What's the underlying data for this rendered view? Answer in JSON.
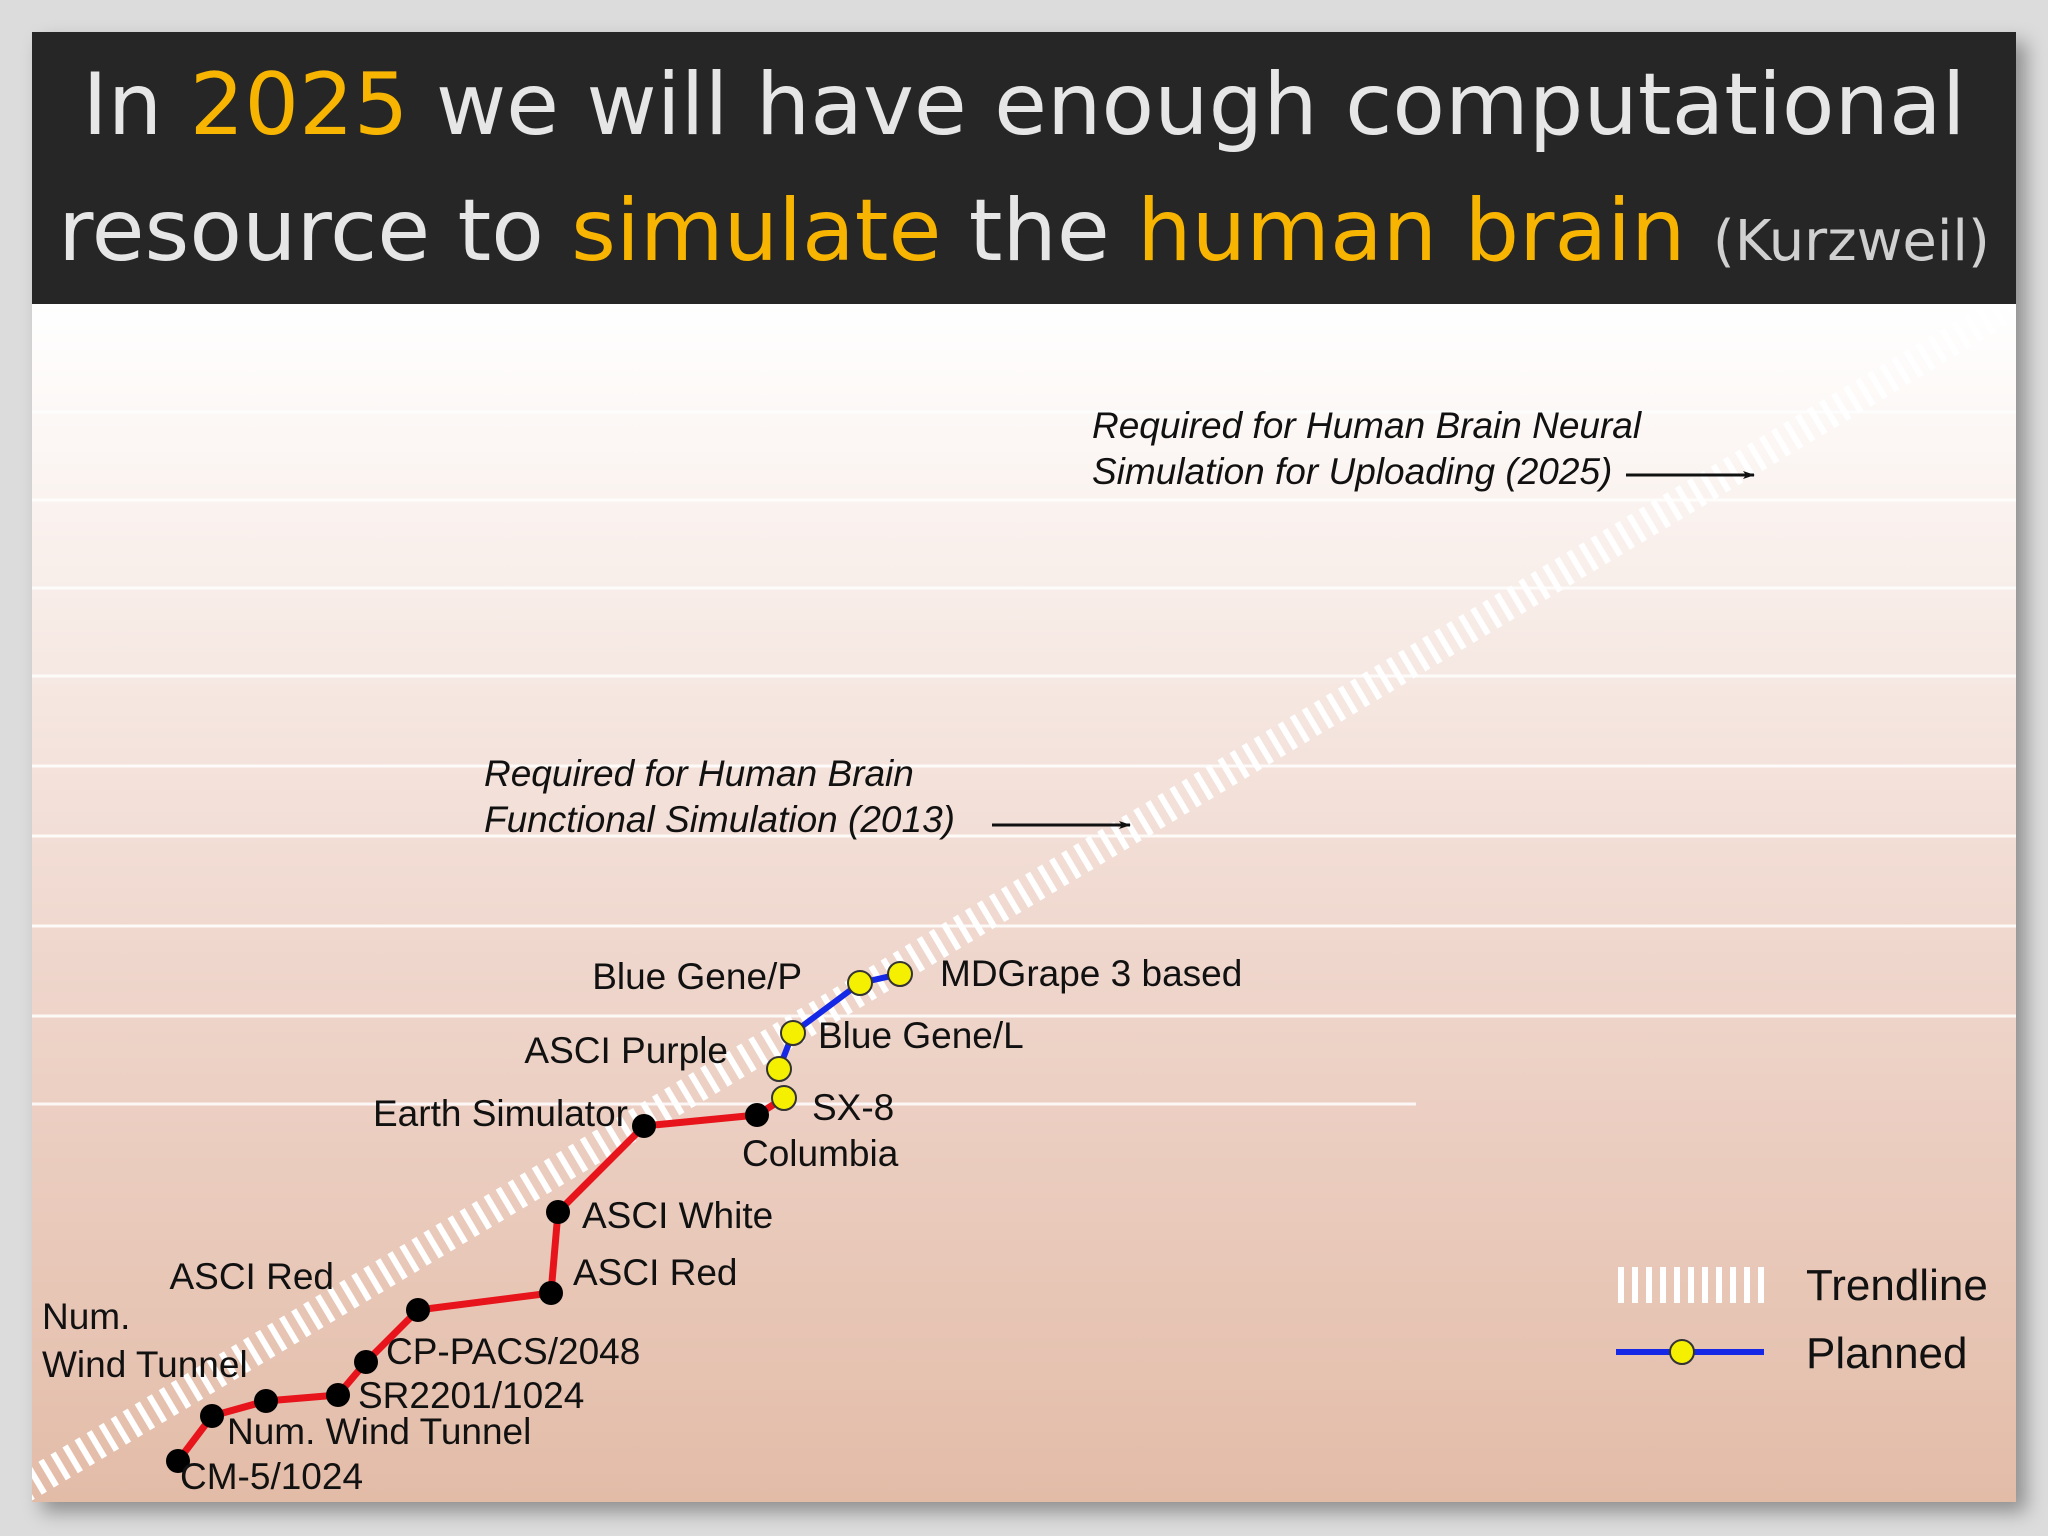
{
  "title": {
    "line1_pre": "In ",
    "line1_year": "2025",
    "line1_post": " we will have enough computational",
    "line2_pre": "resource to ",
    "line2_simulate": "simulate",
    "line2_mid": " the ",
    "line2_brain": "human brain",
    "line2_source": "(Kurzweil)"
  },
  "colors": {
    "highlight": "#f7b400",
    "actual_line": "#e8141c",
    "planned_line": "#1428e6",
    "planned_marker": "#f5f000",
    "actual_marker": "#000000",
    "trendline": "#ffffff"
  },
  "chart_data": {
    "type": "line",
    "title": "",
    "xlabel": "",
    "ylabel": "",
    "grid": true,
    "legend_position": "bottom-right",
    "legend": [
      {
        "name": "Trendline",
        "icon": "dashed-white-band-icon"
      },
      {
        "name": "Planned",
        "icon": "blue-line-yellow-marker-icon"
      }
    ],
    "series": [
      {
        "name": "",
        "kind": "actual",
        "points": [
          {
            "label": "CM-5/1024"
          },
          {
            "label": "Num. Wind Tunnel"
          },
          {
            "label": "Num.\nWind Tunnel"
          },
          {
            "label": "SR2201/1024"
          },
          {
            "label": "CP-PACS/2048"
          },
          {
            "label": "ASCI Red"
          },
          {
            "label": "ASCI Red"
          },
          {
            "label": "ASCI White"
          },
          {
            "label": "Earth Simulator"
          },
          {
            "label": "Columbia"
          }
        ]
      },
      {
        "name": "Planned",
        "kind": "planned",
        "points": [
          {
            "label": "SX-8"
          },
          {
            "label": "ASCI Purple"
          },
          {
            "label": "Blue Gene/L"
          },
          {
            "label": "Blue Gene/P"
          },
          {
            "label": "MDGrape 3 based"
          }
        ]
      }
    ],
    "annotations": [
      {
        "line1": "Required for Human Brain",
        "line2": "Functional Simulation (2013)"
      },
      {
        "line1": "Required for Human Brain Neural",
        "line2": "Simulation for Uploading (2025)"
      }
    ]
  }
}
